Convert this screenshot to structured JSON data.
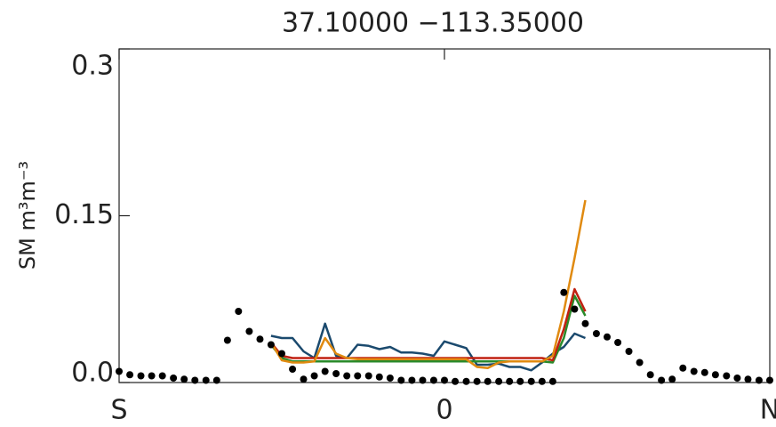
{
  "chart_data": {
    "type": "line",
    "title": "37.10000 −113.35000",
    "y_label": "SM m³m⁻³",
    "xlim": [
      -1,
      1
    ],
    "ylim": [
      0,
      0.3
    ],
    "xticks": [
      {
        "value": -1,
        "label": "S"
      },
      {
        "value": 0,
        "label": "0"
      },
      {
        "value": 1,
        "label": "N"
      }
    ],
    "yticks": [
      {
        "value": 0,
        "label": "0.0"
      },
      0.15,
      0.3
    ],
    "scatter": {
      "color": "#000000",
      "x": [
        -1.0,
        -0.967,
        -0.933,
        -0.9,
        -0.867,
        -0.833,
        -0.8,
        -0.767,
        -0.733,
        -0.7,
        -0.667,
        -0.633,
        -0.6,
        -0.567,
        -0.533,
        -0.5,
        -0.467,
        -0.433,
        -0.4,
        -0.367,
        -0.333,
        -0.3,
        -0.267,
        -0.233,
        -0.2,
        -0.167,
        -0.133,
        -0.1,
        -0.067,
        -0.033,
        0,
        0.033,
        0.067,
        0.1,
        0.133,
        0.167,
        0.2,
        0.233,
        0.267,
        0.3,
        0.333,
        0.367,
        0.4,
        0.433,
        0.467,
        0.5,
        0.533,
        0.567,
        0.6,
        0.633,
        0.667,
        0.7,
        0.733,
        0.767,
        0.8,
        0.833,
        0.867,
        0.9,
        0.933,
        0.967,
        1.0
      ],
      "values": [
        0.01,
        0.007,
        0.006,
        0.006,
        0.006,
        0.004,
        0.003,
        0.002,
        0.002,
        0.002,
        0.038,
        0.064,
        0.046,
        0.039,
        0.034,
        0.026,
        0.012,
        0.003,
        0.006,
        0.01,
        0.008,
        0.006,
        0.006,
        0.006,
        0.005,
        0.004,
        0.002,
        0.002,
        0.002,
        0.002,
        0.002,
        0.001,
        0.001,
        0.001,
        0.001,
        0.001,
        0.001,
        0.001,
        0.001,
        0.001,
        0.001,
        0.081,
        0.066,
        0.053,
        0.044,
        0.041,
        0.036,
        0.028,
        0.018,
        0.007,
        0.002,
        0.003,
        0.013,
        0.01,
        0.009,
        0.007,
        0.006,
        0.004,
        0.003,
        0.002,
        0.002
      ]
    },
    "x": [
      -0.533,
      -0.5,
      -0.467,
      -0.433,
      -0.4,
      -0.367,
      -0.333,
      -0.3,
      -0.267,
      -0.233,
      -0.2,
      -0.167,
      -0.133,
      -0.1,
      -0.067,
      -0.033,
      0,
      0.033,
      0.067,
      0.1,
      0.133,
      0.167,
      0.2,
      0.233,
      0.267,
      0.3,
      0.333,
      0.367,
      0.4,
      0.433
    ],
    "series": [
      {
        "color": "#1b4a6e",
        "values": [
          0.042,
          0.04,
          0.04,
          0.028,
          0.022,
          0.053,
          0.024,
          0.022,
          0.034,
          0.033,
          0.03,
          0.032,
          0.027,
          0.027,
          0.026,
          0.024,
          0.037,
          0.034,
          0.031,
          0.016,
          0.016,
          0.017,
          0.014,
          0.014,
          0.011,
          0.018,
          0.026,
          0.032,
          0.044,
          0.04
        ]
      },
      {
        "color": "#2a8a2a",
        "values": [
          0.034,
          0.022,
          0.019,
          0.019,
          0.019,
          0.019,
          0.019,
          0.019,
          0.019,
          0.019,
          0.019,
          0.019,
          0.019,
          0.019,
          0.019,
          0.019,
          0.019,
          0.019,
          0.019,
          0.019,
          0.019,
          0.019,
          0.019,
          0.019,
          0.019,
          0.019,
          0.018,
          0.04,
          0.078,
          0.06
        ]
      },
      {
        "color": "#c02010",
        "values": [
          0.036,
          0.024,
          0.022,
          0.022,
          0.022,
          0.022,
          0.022,
          0.022,
          0.022,
          0.022,
          0.022,
          0.022,
          0.022,
          0.022,
          0.022,
          0.022,
          0.022,
          0.022,
          0.022,
          0.022,
          0.022,
          0.022,
          0.022,
          0.022,
          0.022,
          0.022,
          0.02,
          0.048,
          0.084,
          0.064
        ]
      },
      {
        "color": "#e08a10",
        "values": [
          0.036,
          0.02,
          0.018,
          0.018,
          0.019,
          0.04,
          0.026,
          0.022,
          0.021,
          0.021,
          0.021,
          0.021,
          0.021,
          0.021,
          0.021,
          0.021,
          0.021,
          0.021,
          0.021,
          0.014,
          0.013,
          0.018,
          0.019,
          0.019,
          0.019,
          0.019,
          0.024,
          0.064,
          0.112,
          0.164
        ]
      }
    ]
  }
}
